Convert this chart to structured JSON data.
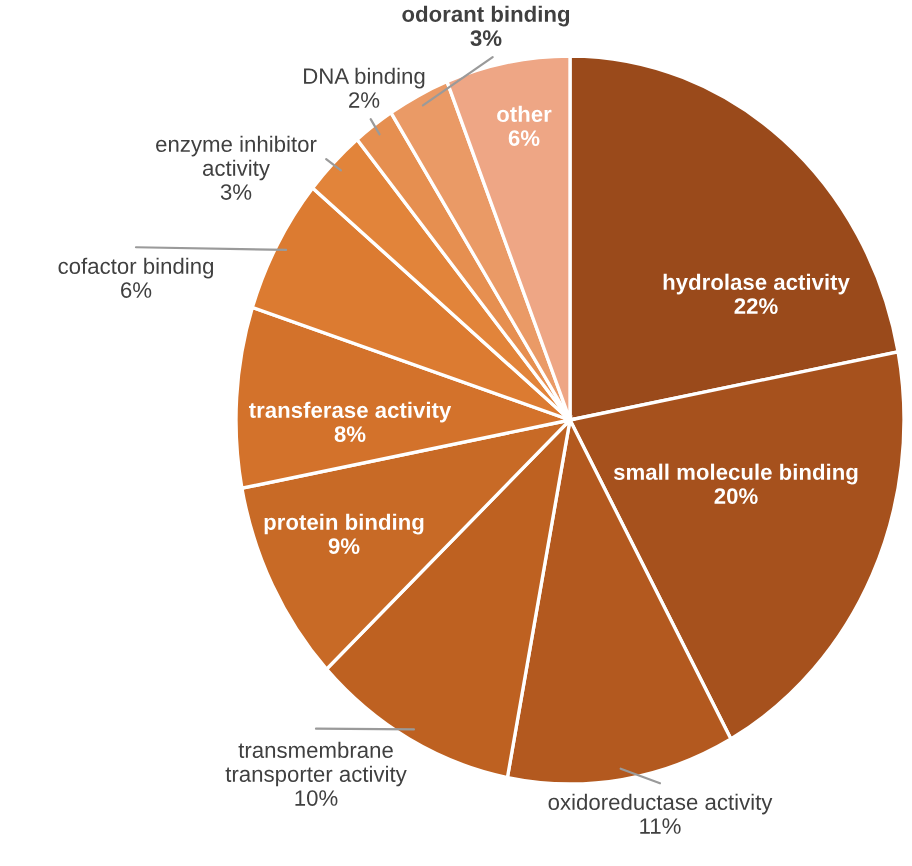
{
  "chart_data": {
    "type": "pie",
    "categories": [
      "hydrolase activity",
      "small molecule binding",
      "oxidoreductase activity",
      "transmembrane transporter activity",
      "protein binding",
      "transferase activity",
      "cofactor binding",
      "enzyme inhibitor activity",
      "DNA binding",
      "odorant binding",
      "other"
    ],
    "values": [
      22,
      20,
      11,
      10,
      9,
      8,
      6,
      3,
      2,
      3,
      6
    ],
    "colors": [
      "#9a4a1b",
      "#a6511d",
      "#b3591f",
      "#be6121",
      "#c86a26",
      "#d3722b",
      "#dc7b31",
      "#e2843a",
      "#e68f50",
      "#ea9a66",
      "#eea685"
    ],
    "value_labels": [
      "22%",
      "20%",
      "11%",
      "10%",
      "9%",
      "8%",
      "6%",
      "3%",
      "2%",
      "3%",
      "6%"
    ]
  }
}
